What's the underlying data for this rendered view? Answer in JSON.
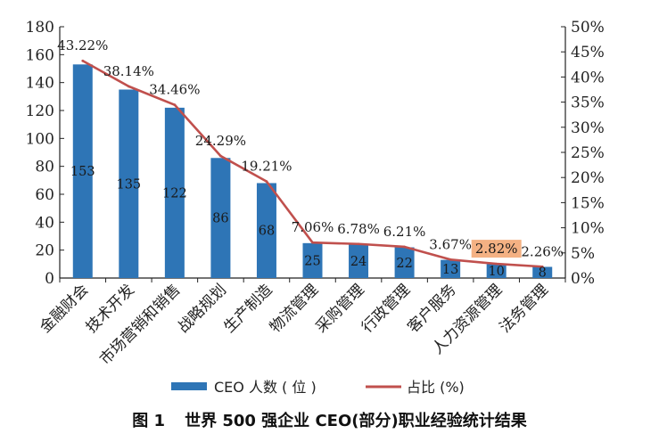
{
  "chart_data": {
    "type": "bar",
    "categories": [
      "金融财会",
      "技术开发",
      "市场营销和销售",
      "战略规划",
      "生产制造",
      "物流管理",
      "采购管理",
      "行政管理",
      "客户服务",
      "人力资源管理",
      "法务管理"
    ],
    "series": [
      {
        "name": "CEO 人数 ( 位 )",
        "type": "bar",
        "axis": "left",
        "color": "#2e75b6",
        "values": [
          153,
          135,
          122,
          86,
          68,
          25,
          24,
          22,
          13,
          10,
          8
        ]
      },
      {
        "name": "占比 (%)",
        "type": "line",
        "axis": "right",
        "color": "#c0504d",
        "values": [
          43.22,
          38.14,
          34.46,
          24.29,
          19.21,
          7.06,
          6.78,
          6.21,
          3.67,
          2.82,
          2.26
        ]
      }
    ],
    "bar_labels": [
      "153",
      "135",
      "122",
      "86",
      "68",
      "25",
      "24",
      "22",
      "13",
      "10",
      "8"
    ],
    "line_labels": [
      "43.22%",
      "38.14%",
      "34.46%",
      "24.29%",
      "19.21%",
      "7.06%",
      "6.78%",
      "6.21%",
      "3.67%",
      "2.82%",
      "2.26%"
    ],
    "highlighted_label_index": 9,
    "highlight_color": "#f4b183",
    "y_left": {
      "range": [
        0,
        180
      ],
      "ticks": [
        "0",
        "20",
        "40",
        "60",
        "80",
        "100",
        "120",
        "140",
        "160",
        "180"
      ]
    },
    "y_right": {
      "range": [
        0,
        50
      ],
      "ticks": [
        "0%",
        "5%",
        "10%",
        "15%",
        "20%",
        "25%",
        "30%",
        "35%",
        "40%",
        "45%",
        "50%"
      ]
    },
    "grid": false,
    "legend_position": "bottom"
  },
  "caption": {
    "figure_no": "图 1",
    "text": "世界 500 强企业 CEO(部分)职业经验统计结果"
  }
}
